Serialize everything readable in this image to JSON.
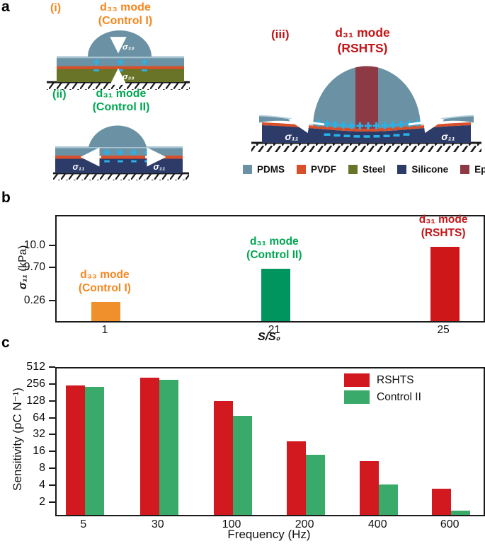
{
  "figure": {
    "panel_labels": {
      "a": "a",
      "b": "b",
      "c": "c"
    }
  },
  "panel_a": {
    "diagrams": {
      "i": {
        "index": "(i)",
        "title": "d₃₃ mode",
        "subtitle": "(Control I)",
        "stress": "σ₃₃"
      },
      "ii": {
        "index": "(ii)",
        "title": "d₃₁ mode",
        "subtitle": "(Control II)",
        "stress": "σ₁₁"
      },
      "iii": {
        "index": "(iii)",
        "title": "d₃₁ mode",
        "subtitle": "(RSHTS)",
        "stress": "σ₁₁"
      }
    },
    "materials_legend": [
      {
        "label": "PDMS",
        "color": "#6b92a4"
      },
      {
        "label": "PVDF",
        "color": "#d8502b"
      },
      {
        "label": "Steel",
        "color": "#6a7429"
      },
      {
        "label": "Silicone",
        "color": "#2c3b68"
      },
      {
        "label": "Epoxy",
        "color": "#8e3a44"
      }
    ],
    "colors": {
      "title_i": "#f5871e",
      "title_ii": "#00a651",
      "title_iii": "#c41517",
      "charge": "#29b2e8",
      "arrow": "#ffffff"
    }
  },
  "chart_data": [
    {
      "panel": "b",
      "type": "bar",
      "title": "",
      "xlabel": "S/S₀",
      "ylabel_symbol": "σ₁₁",
      "ylabel_unit": " (kPa)",
      "categories": [
        "1",
        "21",
        "25"
      ],
      "values": [
        0.26,
        9.7,
        10.0
      ],
      "yticks": [
        "0.26",
        "9.70",
        "10.0"
      ],
      "ylim": [
        0,
        10.3
      ],
      "axis_note": "broken nonlinear y-axis",
      "grid": false,
      "bar_colors": [
        "#f0902c",
        "#00945f",
        "#cd1719"
      ],
      "bar_labels": [
        {
          "line1": "d₃₃ mode",
          "line2": "(Control I)",
          "color": "#f5871e"
        },
        {
          "line1": "d₃₁ mode",
          "line2": "(Control II)",
          "color": "#00a651"
        },
        {
          "line1": "d₃₁ mode",
          "line2": "(RSHTS)",
          "color": "#c41517"
        }
      ]
    },
    {
      "panel": "c",
      "type": "bar",
      "xlabel": "Frequency (Hz)",
      "ylabel": "Sensitivity (pC N⁻¹)",
      "categories": [
        "5",
        "30",
        "100",
        "200",
        "400",
        "600"
      ],
      "series": [
        {
          "name": "RSHTS",
          "color": "#d2191f",
          "values": [
            256,
            350,
            135,
            26,
            11.5,
            3.7
          ]
        },
        {
          "name": "Control II",
          "color": "#3aaa6b",
          "values": [
            240,
            320,
            73,
            15,
            4.4,
            1.5
          ]
        }
      ],
      "yscale": "log2",
      "yticks": [
        2,
        4,
        8,
        16,
        32,
        64,
        128,
        256,
        512
      ],
      "ylim": [
        1.25,
        512
      ],
      "grid": false,
      "legend_position": "top-right"
    }
  ]
}
